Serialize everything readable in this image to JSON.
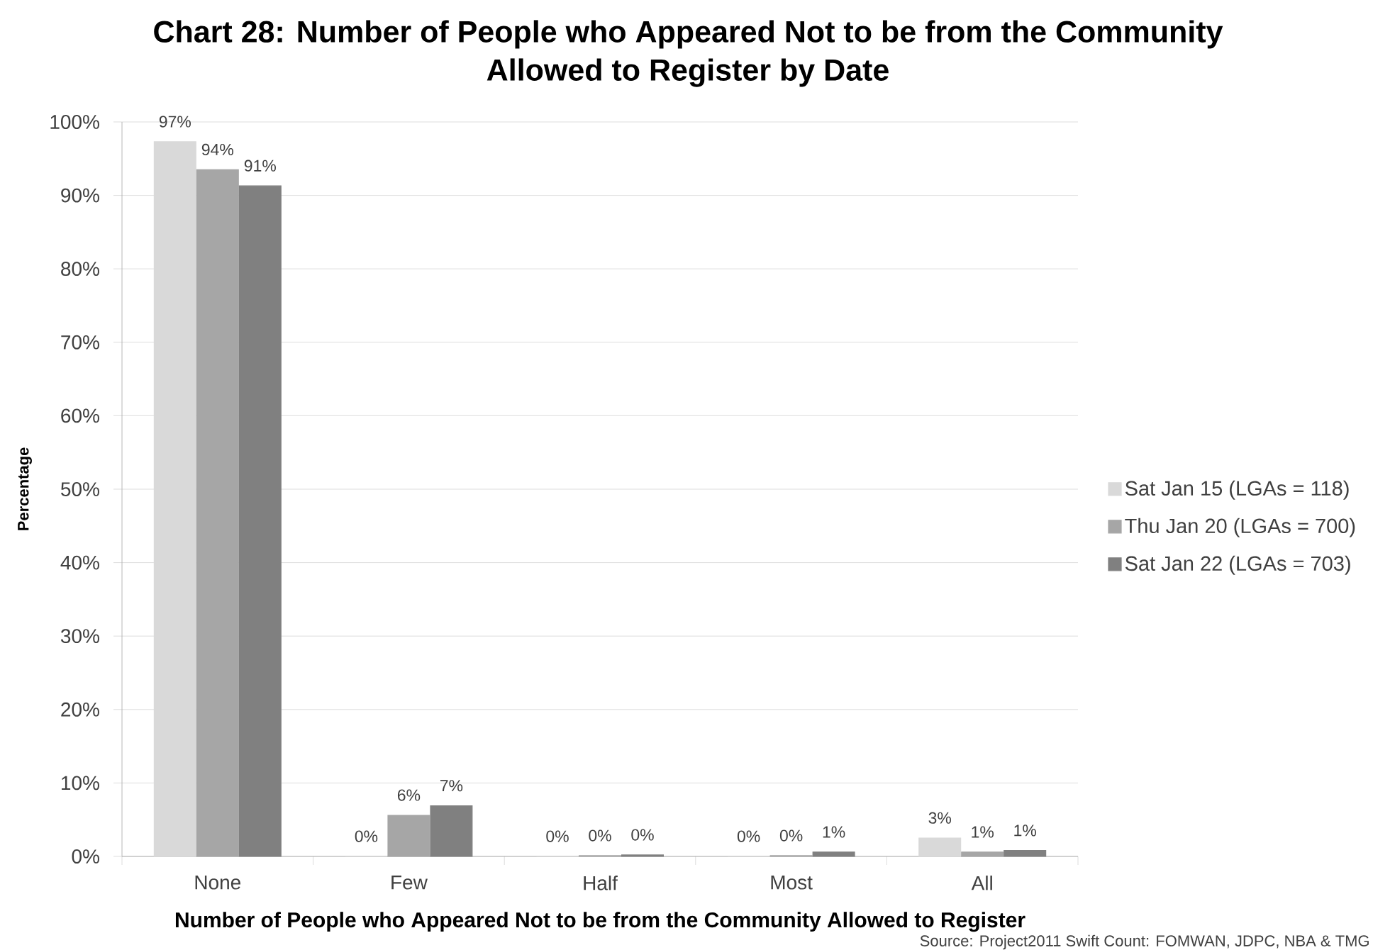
{
  "chart_data": {
    "type": "bar",
    "title": "Chart 28: Number of People who Appeared Not to be from the Community Allowed to Register by Date",
    "xlabel": "Number of People who Appeared Not to be from the Community Allowed to Register",
    "ylabel": "Percentage",
    "categories": [
      "None",
      "Few",
      "Half",
      "Most",
      "All"
    ],
    "series": [
      {
        "name": "Sat Jan 15 (LGAs = 118)",
        "color": "#d9d9d9",
        "values": [
          97.3,
          0,
          0,
          0,
          2.5
        ],
        "value_labels": [
          "97%",
          "0%",
          "0%",
          "0%",
          "3%"
        ]
      },
      {
        "name": "Thu Jan 20 (LGAs = 700)",
        "color": "#a6a6a6",
        "values": [
          93.5,
          5.6,
          0.1,
          0.1,
          0.6
        ],
        "value_labels": [
          "94%",
          "6%",
          "0%",
          "0%",
          "1%"
        ]
      },
      {
        "name": "Sat Jan 22 (LGAs = 703)",
        "color": "#808080",
        "values": [
          91.3,
          6.9,
          0.2,
          0.6,
          0.8
        ],
        "value_labels": [
          "91%",
          "7%",
          "0%",
          "1%",
          "1%"
        ]
      }
    ],
    "ylim": [
      0,
      100
    ],
    "yticks": [
      {
        "value": 0,
        "label": "0%"
      },
      {
        "value": 10,
        "label": "10%"
      },
      {
        "value": 20,
        "label": "20%"
      },
      {
        "value": 30,
        "label": "30%"
      },
      {
        "value": 40,
        "label": "40%"
      },
      {
        "value": 50,
        "label": "50%"
      },
      {
        "value": 60,
        "label": "60%"
      },
      {
        "value": 70,
        "label": "70%"
      },
      {
        "value": 80,
        "label": "80%"
      },
      {
        "value": 90,
        "label": "90%"
      },
      {
        "value": 100,
        "label": "100%"
      }
    ],
    "grid": "y",
    "legend": "right",
    "annotations": [
      "Source: Project2011 Swift Count: FOMWAN, JDPC, NBA & TMG"
    ]
  }
}
